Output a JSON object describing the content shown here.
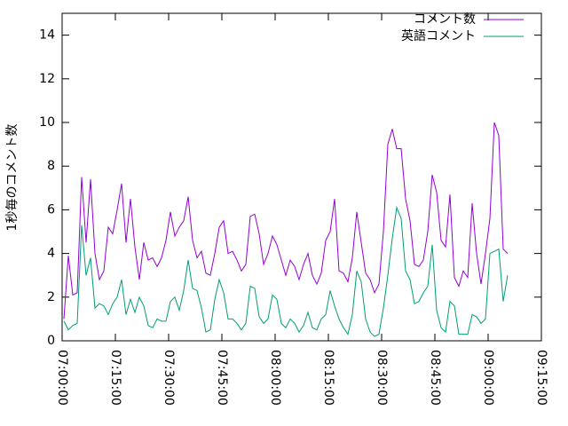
{
  "chart_data": {
    "type": "line",
    "y_label": "1秒毎のコメント数",
    "x": [
      "07:00:30",
      "07:01:45",
      "07:03:00",
      "07:04:15",
      "07:05:30",
      "07:06:45",
      "07:08:00",
      "07:09:15",
      "07:10:30",
      "07:11:45",
      "07:13:00",
      "07:14:15",
      "07:15:30",
      "07:16:45",
      "07:18:00",
      "07:19:15",
      "07:20:30",
      "07:21:45",
      "07:23:00",
      "07:24:15",
      "07:25:30",
      "07:26:45",
      "07:28:00",
      "07:29:15",
      "07:30:30",
      "07:31:45",
      "07:33:00",
      "07:34:15",
      "07:35:30",
      "07:36:45",
      "07:38:00",
      "07:39:15",
      "07:40:30",
      "07:41:45",
      "07:43:00",
      "07:44:15",
      "07:45:30",
      "07:46:45",
      "07:48:00",
      "07:49:15",
      "07:50:30",
      "07:51:45",
      "07:53:00",
      "07:54:15",
      "07:55:30",
      "07:56:45",
      "07:58:00",
      "07:59:15",
      "08:00:30",
      "08:01:45",
      "08:03:00",
      "08:04:15",
      "08:05:30",
      "08:06:45",
      "08:08:00",
      "08:09:15",
      "08:10:30",
      "08:11:45",
      "08:13:00",
      "08:14:15",
      "08:15:30",
      "08:16:45",
      "08:18:00",
      "08:19:15",
      "08:20:30",
      "08:21:45",
      "08:23:00",
      "08:24:15",
      "08:25:30",
      "08:26:45",
      "08:28:00",
      "08:29:15",
      "08:30:30",
      "08:31:45",
      "08:33:00",
      "08:34:15",
      "08:35:30",
      "08:36:45",
      "08:38:00",
      "08:39:15",
      "08:40:30",
      "08:41:45",
      "08:43:00",
      "08:44:15",
      "08:45:30",
      "08:46:45",
      "08:48:00",
      "08:49:15",
      "08:50:30",
      "08:51:45",
      "08:53:00",
      "08:54:15",
      "08:55:30",
      "08:56:45",
      "08:58:00",
      "08:59:15",
      "09:00:30",
      "09:01:45",
      "09:03:00",
      "09:04:15",
      "09:05:30"
    ],
    "series": [
      {
        "name": "コメント数",
        "color": "#9400d3",
        "values": [
          1.0,
          3.9,
          2.1,
          2.2,
          7.5,
          4.5,
          7.4,
          4.0,
          2.8,
          3.2,
          5.2,
          4.9,
          6.0,
          7.2,
          4.5,
          6.5,
          4.3,
          2.8,
          4.5,
          3.7,
          3.8,
          3.4,
          3.8,
          4.6,
          5.9,
          4.8,
          5.2,
          5.5,
          6.6,
          4.6,
          3.8,
          4.1,
          3.1,
          3.0,
          4.0,
          5.2,
          5.5,
          4.0,
          4.1,
          3.7,
          3.2,
          3.5,
          5.7,
          5.8,
          4.9,
          3.5,
          4.0,
          4.8,
          4.4,
          3.7,
          3.0,
          3.7,
          3.4,
          2.8,
          3.5,
          4.0,
          3.0,
          2.6,
          3.1,
          4.6,
          5.0,
          6.5,
          3.2,
          3.1,
          2.7,
          3.8,
          5.9,
          4.5,
          3.1,
          2.8,
          2.2,
          2.6,
          5.0,
          9.0,
          9.7,
          8.8,
          8.8,
          6.5,
          5.5,
          3.5,
          3.4,
          3.7,
          5.0,
          7.6,
          6.8,
          4.6,
          4.3,
          6.7,
          2.9,
          2.5,
          3.2,
          2.9,
          6.3,
          4.0,
          2.6,
          4.0,
          5.6,
          10.0,
          9.4,
          4.2,
          4.0
        ]
      },
      {
        "name": "英語コメント",
        "color": "#009e73",
        "values": [
          0.9,
          0.5,
          0.7,
          0.8,
          5.3,
          3.0,
          3.8,
          1.5,
          1.7,
          1.6,
          1.2,
          1.7,
          2.0,
          2.8,
          1.2,
          1.9,
          1.3,
          2.0,
          1.6,
          0.7,
          0.6,
          1.0,
          0.9,
          0.9,
          1.8,
          2.0,
          1.4,
          2.3,
          3.7,
          2.4,
          2.3,
          1.5,
          0.4,
          0.5,
          1.9,
          2.8,
          2.2,
          1.0,
          1.0,
          0.8,
          0.5,
          0.8,
          2.5,
          2.4,
          1.1,
          0.8,
          1.0,
          2.1,
          1.9,
          0.8,
          0.6,
          1.0,
          0.8,
          0.4,
          0.7,
          1.3,
          0.6,
          0.5,
          1.0,
          1.2,
          2.3,
          1.6,
          1.0,
          0.6,
          0.3,
          1.2,
          3.2,
          2.7,
          1.0,
          0.4,
          0.2,
          0.3,
          1.5,
          3.0,
          4.7,
          6.1,
          5.6,
          3.2,
          2.8,
          1.7,
          1.8,
          2.2,
          2.5,
          4.4,
          1.4,
          0.6,
          0.4,
          1.8,
          1.6,
          0.3,
          0.3,
          0.3,
          1.2,
          1.1,
          0.8,
          1.0,
          4.0,
          4.1,
          4.2,
          1.8,
          3.0
        ]
      }
    ],
    "xlim": [
      "07:00:00",
      "09:15:00"
    ],
    "xticks": [
      "07:00:00",
      "07:15:00",
      "07:30:00",
      "07:45:00",
      "08:00:00",
      "08:15:00",
      "08:30:00",
      "08:45:00",
      "09:00:00",
      "09:15:00"
    ],
    "ylim": [
      0,
      15
    ],
    "yticks": [
      0,
      2,
      4,
      6,
      8,
      10,
      12,
      14
    ],
    "legend": "top-right"
  }
}
